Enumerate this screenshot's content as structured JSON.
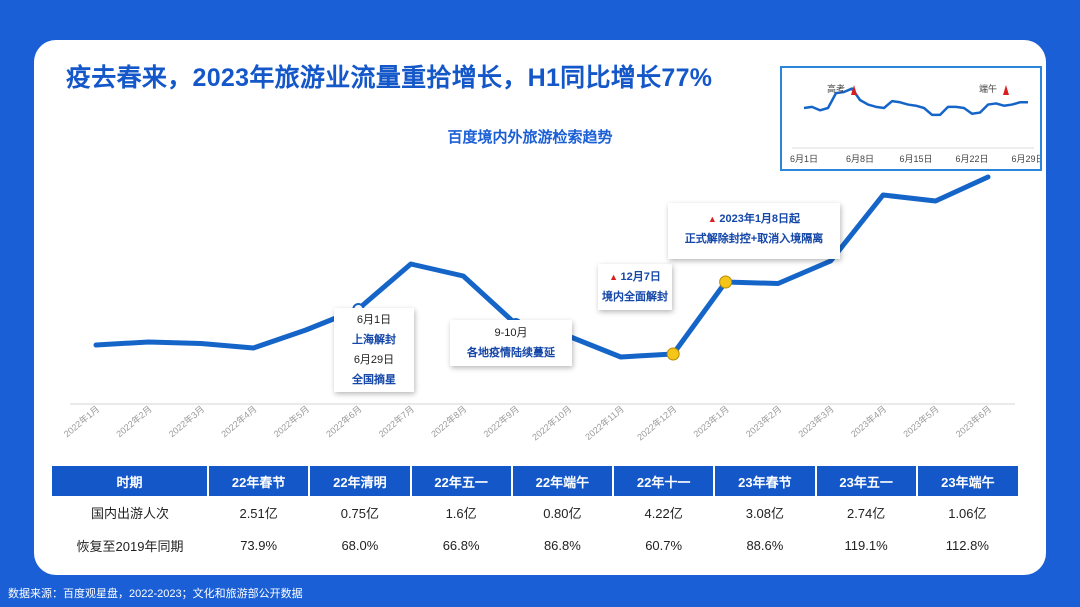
{
  "title": "疫去春来，2023年旅游业流量重拾增长，H1同比增长77%",
  "subtitle": "百度境内外旅游检索趋势",
  "source": "数据来源：百度观星盘，2022-2023；文化和旅游部公开数据",
  "callouts": {
    "shanghai": {
      "line1": "6月1日",
      "line2": "上海解封",
      "line3": "6月29日",
      "line4": "全国摘星"
    },
    "epidemic": {
      "line1": "9-10月",
      "line2": "各地疫情陆续蔓延"
    },
    "dec7": {
      "line1": "12月7日",
      "line2": "境内全面解封"
    },
    "jan8": {
      "line1": "2023年1月8日起",
      "line2": "正式解除封控+取消入境隔离"
    }
  },
  "colors": {
    "brand_blue": "#1a5fd6",
    "line_blue": "#1565c8",
    "marker_red": "#d81e1e",
    "marker_yellow": "#f5c518"
  },
  "chart_data": [
    {
      "type": "line",
      "x": [
        "2022年1月",
        "2022年2月",
        "2022年3月",
        "2022年4月",
        "2022年5月",
        "2022年6月",
        "2022年7月",
        "2022年8月",
        "2022年9月",
        "2022年10月",
        "2022年11月",
        "2022年12月",
        "2023年1月",
        "2023年2月",
        "2023年3月",
        "2023年4月",
        "2023年5月",
        "2023年6月"
      ],
      "series": [
        {
          "values": [
            25,
            26,
            25.5,
            24,
            30,
            37,
            52,
            48,
            32,
            28,
            21,
            22,
            46,
            45.5,
            53,
            75,
            73,
            81
          ]
        }
      ],
      "markers": {
        "hollow": [
          "2022年6月",
          "2022年9月"
        ],
        "filled": [
          "2022年12月",
          "2023年1月"
        ],
        "flag": [
          "2023年6月"
        ]
      },
      "grid": false,
      "y_axis_visible": false
    },
    {
      "type": "line",
      "x_ticks": [
        "6月1日",
        "6月8日",
        "6月15日",
        "6月22日",
        "6月29日"
      ],
      "annotations": [
        "高考",
        "端午"
      ],
      "series": [
        {
          "values": [
            35,
            36,
            33,
            35,
            48,
            49,
            52,
            42,
            38,
            36,
            35,
            41,
            40,
            38,
            37,
            35,
            29,
            29,
            36,
            36,
            35,
            30,
            31,
            38,
            39,
            37,
            38,
            40,
            40
          ]
        }
      ],
      "ylim": [
        0,
        70
      ]
    }
  ],
  "table": {
    "headers": [
      "时期",
      "22年春节",
      "22年清明",
      "22年五一",
      "22年端午",
      "22年十一",
      "23年春节",
      "23年五一",
      "23年端午"
    ],
    "rows": [
      {
        "label": "国内出游人次",
        "cells": [
          "2.51亿",
          "0.75亿",
          "1.6亿",
          "0.80亿",
          "4.22亿",
          "3.08亿",
          "2.74亿",
          "1.06亿"
        ]
      },
      {
        "label": "恢复至2019年同期",
        "cells": [
          "73.9%",
          "68.0%",
          "66.8%",
          "86.8%",
          "60.7%",
          "88.6%",
          "119.1%",
          "112.8%"
        ]
      }
    ]
  }
}
